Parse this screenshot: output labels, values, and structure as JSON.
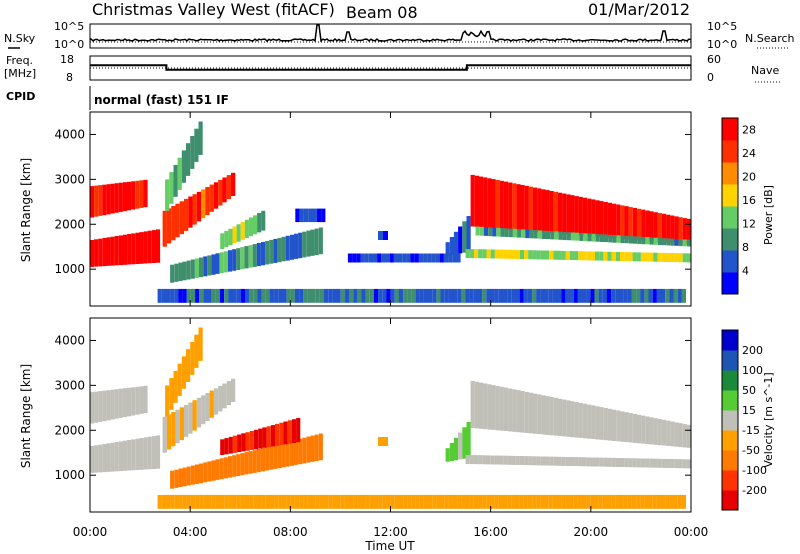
{
  "header": {
    "station": "Christmas Valley West (fitACF)",
    "beam": "Beam 08",
    "date": "01/Mar/2012"
  },
  "top_panels": {
    "nsky_label": "N.Sky",
    "nsearch_label": "N.Search",
    "freq_label_1": "Freq.",
    "freq_label_2": "[MHz]",
    "nave_label": "Nave",
    "cpid_label": "CPID",
    "cpid_value": "normal (fast) 151 IF",
    "noise_ticks": [
      "10^5",
      "10^0"
    ],
    "freq_ticks": [
      "18",
      "8"
    ],
    "nave_ticks": [
      "60",
      "0"
    ]
  },
  "chart_data": [
    {
      "type": "line",
      "title": "",
      "xlabel": "",
      "ylabel": "Freq. [MHz]",
      "ylim": [
        5,
        18
      ],
      "x_unit": "hours UT",
      "series": [
        {
          "name": "Freq.",
          "x": [
            0,
            3.05,
            3.05,
            15.05,
            15.05,
            24
          ],
          "values": [
            13.0,
            13.0,
            10.5,
            10.5,
            13.0,
            13.0
          ]
        }
      ],
      "y2_label": "Nave",
      "y2_ticks": [
        60,
        0
      ],
      "y2_level": 30
    },
    {
      "type": "heatmap",
      "title": "",
      "xlabel": "Time UT",
      "ylabel": "Slant Range [km]",
      "x_ticks": [
        "00:00",
        "04:00",
        "08:00",
        "12:00",
        "16:00",
        "20:00",
        "00:00"
      ],
      "y_ticks": [
        1000,
        2000,
        3000,
        4000
      ],
      "xlim": [
        0,
        24
      ],
      "ylim": [
        180,
        4500
      ],
      "colorbar": {
        "label": "Power [dB]",
        "ticks": [
          4,
          8,
          12,
          16,
          20,
          24,
          28
        ],
        "range": [
          0,
          30
        ],
        "colors": [
          "#0000ff",
          "#2255cc",
          "#3f8f6f",
          "#66cc66",
          "#ffd200",
          "#ff8c00",
          "#ff3000",
          "#ff0000"
        ]
      },
      "regions": [
        {
          "t0": 0.0,
          "t1": 2.8,
          "r0": 1050,
          "r1": 1650,
          "r0e": 1150,
          "r1e": 1900,
          "value": 30
        },
        {
          "t0": 0.0,
          "t1": 2.3,
          "r0": 2150,
          "r1": 2850,
          "r0e": 2400,
          "r1e": 3000,
          "value": 27
        },
        {
          "t0": 2.9,
          "t1": 5.8,
          "r0": 1500,
          "r1": 2300,
          "r0e": 2700,
          "r1e": 3200,
          "value": 25
        },
        {
          "t0": 3.2,
          "t1": 9.3,
          "r0": 700,
          "r1": 1100,
          "r0e": 1350,
          "r1e": 1950,
          "value": 9
        },
        {
          "t0": 5.2,
          "t1": 7.0,
          "r0": 1450,
          "r1": 1800,
          "r0e": 1900,
          "r1e": 2350,
          "value": 13
        },
        {
          "t0": 3.0,
          "t1": 4.5,
          "r0": 2300,
          "r1": 3000,
          "r0e": 3700,
          "r1e": 4450,
          "value": 11
        },
        {
          "t0": 2.7,
          "t1": 23.8,
          "r0": 250,
          "r1": 560,
          "r0e": 250,
          "r1e": 560,
          "value": 6
        },
        {
          "t0": 10.3,
          "t1": 14.8,
          "r0": 1150,
          "r1": 1350,
          "r0e": 1150,
          "r1e": 1350,
          "value": 4
        },
        {
          "t0": 11.5,
          "t1": 11.9,
          "r0": 1650,
          "r1": 1850,
          "r0e": 1650,
          "r1e": 1850,
          "value": 5
        },
        {
          "t0": 14.2,
          "t1": 15.2,
          "r0": 1300,
          "r1": 1600,
          "r0e": 1400,
          "r1e": 2300,
          "value": 6
        },
        {
          "t0": 15.2,
          "t1": 24.0,
          "r0": 1950,
          "r1": 3100,
          "r0e": 1550,
          "r1e": 2100,
          "value": 28
        },
        {
          "t0": 15.4,
          "t1": 24.0,
          "r0": 1750,
          "r1": 1950,
          "r0e": 1500,
          "r1e": 1650,
          "value": 10
        },
        {
          "t0": 15.0,
          "t1": 24.0,
          "r0": 1250,
          "r1": 1450,
          "r0e": 1150,
          "r1e": 1350,
          "value": 15
        },
        {
          "t0": 8.2,
          "t1": 9.4,
          "r0": 2050,
          "r1": 2350,
          "r0e": 2050,
          "r1e": 2350,
          "value": 4
        }
      ]
    },
    {
      "type": "heatmap",
      "title": "",
      "xlabel": "Time UT",
      "ylabel": "Slant Range [km]",
      "x_ticks": [
        "00:00",
        "04:00",
        "08:00",
        "12:00",
        "16:00",
        "20:00",
        "00:00"
      ],
      "y_ticks": [
        1000,
        2000,
        3000,
        4000
      ],
      "xlim": [
        0,
        24
      ],
      "ylim": [
        180,
        4500
      ],
      "colorbar": {
        "label": "Velocity [m s^-1]",
        "ticks": [
          200,
          100,
          50,
          15,
          -15,
          -50,
          -100,
          -200
        ],
        "range": [
          -250,
          250
        ],
        "colors": [
          "#e60000",
          "#ff3300",
          "#ff7a00",
          "#ffa000",
          "#c0c0b8",
          "#55cc33",
          "#1a8a3a",
          "#1e55b4",
          "#0000cc"
        ]
      },
      "regions": [
        {
          "t0": 0.0,
          "t1": 2.8,
          "r0": 1050,
          "r1": 1650,
          "r0e": 1150,
          "r1e": 1900,
          "value": 0
        },
        {
          "t0": 0.0,
          "t1": 2.3,
          "r0": 2150,
          "r1": 2850,
          "r0e": 2400,
          "r1e": 3000,
          "value": 0
        },
        {
          "t0": 2.9,
          "t1": 5.8,
          "r0": 1500,
          "r1": 2300,
          "r0e": 2700,
          "r1e": 3200,
          "value": -20
        },
        {
          "t0": 3.2,
          "t1": 9.3,
          "r0": 700,
          "r1": 1100,
          "r0e": 1350,
          "r1e": 1950,
          "value": -120
        },
        {
          "t0": 5.2,
          "t1": 8.4,
          "r0": 1450,
          "r1": 1800,
          "r0e": 1750,
          "r1e": 2300,
          "value": -200
        },
        {
          "t0": 3.0,
          "t1": 4.5,
          "r0": 2300,
          "r1": 3000,
          "r0e": 3700,
          "r1e": 4450,
          "value": -60
        },
        {
          "t0": 2.7,
          "t1": 23.8,
          "r0": 250,
          "r1": 560,
          "r0e": 250,
          "r1e": 560,
          "value": -60
        },
        {
          "t0": 11.5,
          "t1": 11.9,
          "r0": 1650,
          "r1": 1850,
          "r0e": 1650,
          "r1e": 1850,
          "value": -80
        },
        {
          "t0": 14.2,
          "t1": 15.2,
          "r0": 1300,
          "r1": 1600,
          "r0e": 1400,
          "r1e": 2300,
          "value": 30
        },
        {
          "t0": 15.2,
          "t1": 24.0,
          "r0": 2050,
          "r1": 3100,
          "r0e": 1600,
          "r1e": 2100,
          "value": 0
        },
        {
          "t0": 15.0,
          "t1": 24.0,
          "r0": 1250,
          "r1": 1450,
          "r0e": 1150,
          "r1e": 1350,
          "value": 0
        }
      ]
    }
  ]
}
